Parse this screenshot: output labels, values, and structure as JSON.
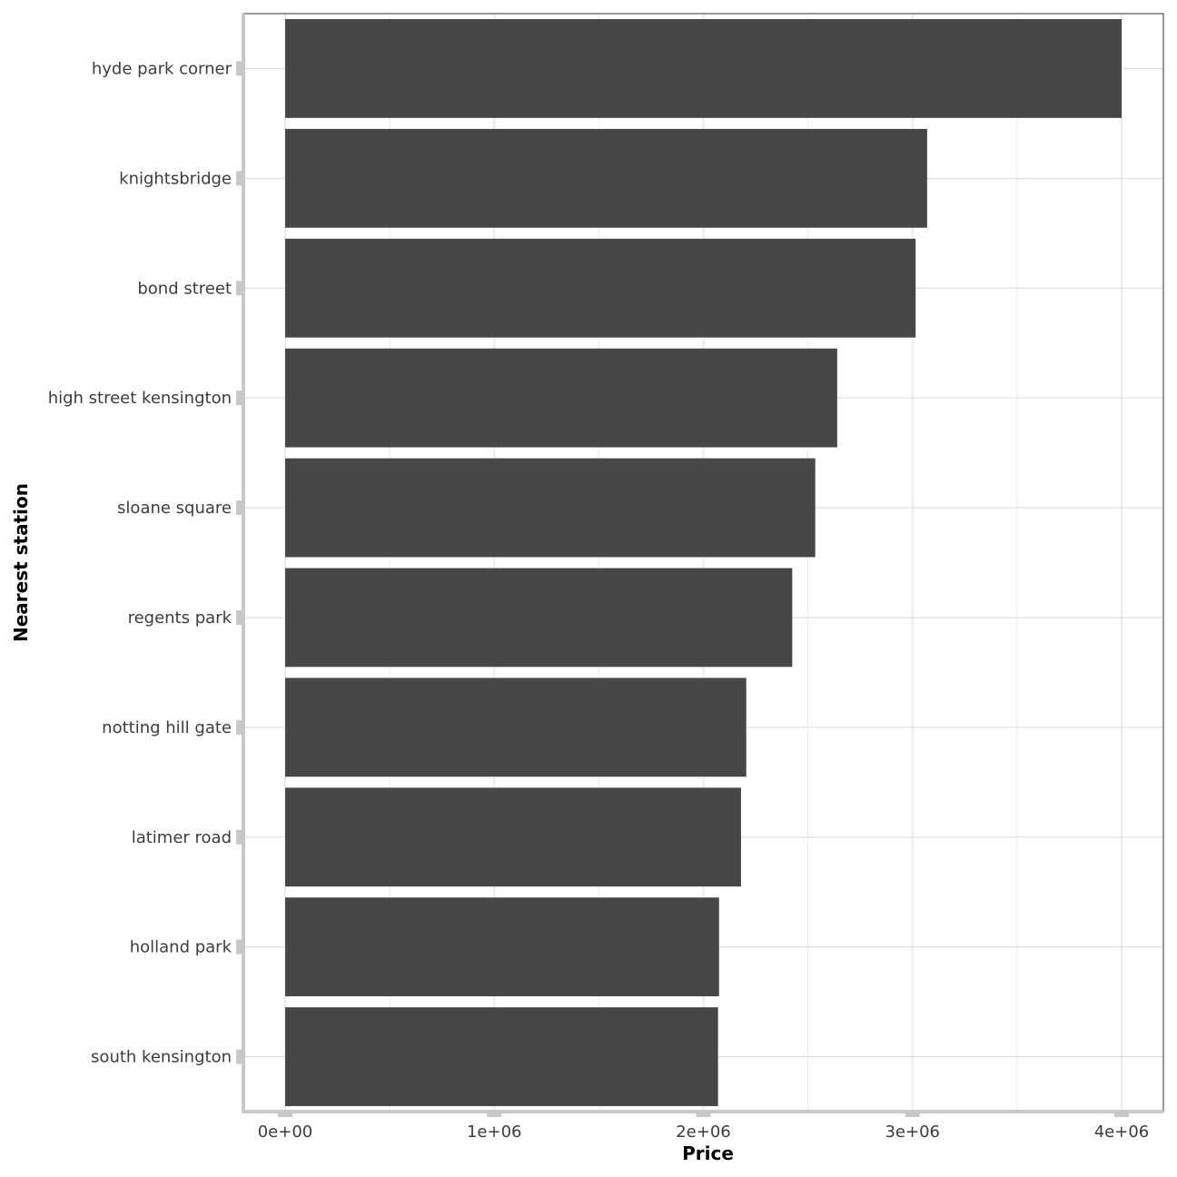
{
  "chart_data": {
    "type": "bar",
    "orientation": "horizontal",
    "xlabel": "Price",
    "ylabel": "Nearest station",
    "xlim": [
      -200000,
      4200000
    ],
    "x_ticks": [
      0,
      1000000,
      2000000,
      3000000,
      4000000
    ],
    "x_tick_labels": [
      "0e+00",
      "1e+06",
      "2e+06",
      "3e+06",
      "4e+06"
    ],
    "categories": [
      "hyde park corner",
      "knightsbridge",
      "bond street",
      "high street kensington",
      "sloane square",
      "regents park",
      "notting hill gate",
      "latimer road",
      "holland park",
      "south kensington"
    ],
    "values": [
      4000000,
      3070000,
      3015000,
      2640000,
      2535000,
      2425000,
      2205000,
      2180000,
      2075000,
      2070000
    ],
    "grid": true,
    "legend": "none",
    "colors": {
      "bar": "#474747",
      "grid_major": "#d9d9d9",
      "grid_minor": "#ebebeb",
      "axis": "#c8c8c8",
      "panel_border": "#333333"
    }
  }
}
